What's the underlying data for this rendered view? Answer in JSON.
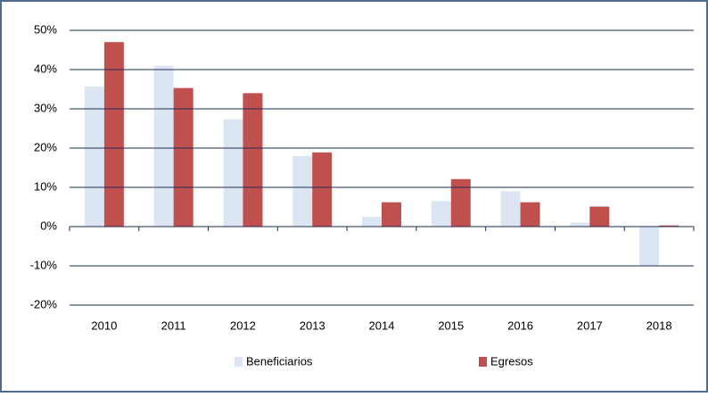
{
  "chart_data": {
    "type": "bar",
    "categories": [
      "2010",
      "2011",
      "2012",
      "2013",
      "2014",
      "2015",
      "2016",
      "2017",
      "2018"
    ],
    "series": [
      {
        "name": "Beneficiarios",
        "color": "#dce6f2",
        "values": [
          35.7,
          41,
          27.3,
          18,
          2.5,
          6.5,
          9,
          1,
          -10
        ]
      },
      {
        "name": "Egresos",
        "color": "#c0504d",
        "values": [
          47,
          35.3,
          34,
          18.9,
          6.2,
          12.1,
          6.2,
          5.1,
          0.3
        ]
      }
    ],
    "ylim": [
      -20,
      50
    ],
    "yticks": [
      {
        "value": -20,
        "label": "-20%"
      },
      {
        "value": -10,
        "label": "-10%"
      },
      {
        "value": 0,
        "label": "0%"
      },
      {
        "value": 10,
        "label": "10%"
      },
      {
        "value": 20,
        "label": "20%"
      },
      {
        "value": 30,
        "label": "30%"
      },
      {
        "value": 40,
        "label": "40%"
      },
      {
        "value": 50,
        "label": "50%"
      }
    ],
    "grid": true,
    "legend": "bottom"
  }
}
